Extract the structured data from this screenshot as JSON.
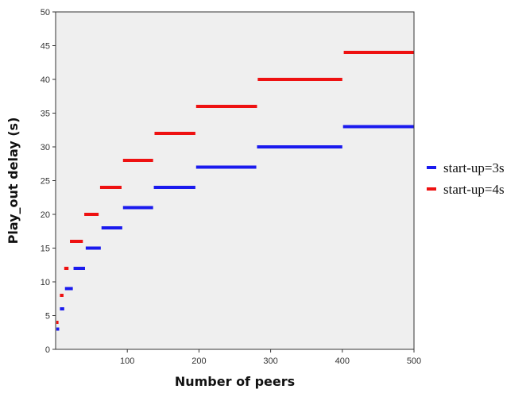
{
  "chart_data": {
    "type": "line",
    "title": "",
    "xlabel": "Number of peers",
    "ylabel": "Play_out delay (s)",
    "xlim": [
      0,
      500
    ],
    "ylim": [
      0,
      50
    ],
    "xticks": [
      100,
      200,
      300,
      400,
      500
    ],
    "yticks": [
      0,
      5,
      10,
      15,
      20,
      25,
      30,
      35,
      40,
      45,
      50
    ],
    "grid": false,
    "legend_position": "right",
    "background": "#efefef",
    "series": [
      {
        "name": "start-up=3s",
        "color": "#1a1aee",
        "style": "step-segments",
        "segments": [
          {
            "x": [
              1,
              5
            ],
            "y": 3
          },
          {
            "x": [
              6,
              12
            ],
            "y": 6
          },
          {
            "x": [
              13,
              24
            ],
            "y": 9
          },
          {
            "x": [
              25,
              41
            ],
            "y": 12
          },
          {
            "x": [
              42,
              63
            ],
            "y": 15
          },
          {
            "x": [
              64,
              93
            ],
            "y": 18
          },
          {
            "x": [
              94,
              136
            ],
            "y": 21
          },
          {
            "x": [
              137,
              195
            ],
            "y": 24
          },
          {
            "x": [
              196,
              280
            ],
            "y": 27
          },
          {
            "x": [
              281,
              400
            ],
            "y": 30
          },
          {
            "x": [
              401,
              500
            ],
            "y": 33
          }
        ]
      },
      {
        "name": "start-up=4s",
        "color": "#ee1111",
        "style": "step-segments",
        "segments": [
          {
            "x": [
              1,
              4
            ],
            "y": 4
          },
          {
            "x": [
              6,
              11
            ],
            "y": 8
          },
          {
            "x": [
              12,
              18
            ],
            "y": 12
          },
          {
            "x": [
              20,
              38
            ],
            "y": 16
          },
          {
            "x": [
              40,
              60
            ],
            "y": 20
          },
          {
            "x": [
              62,
              92
            ],
            "y": 24
          },
          {
            "x": [
              94,
              136
            ],
            "y": 28
          },
          {
            "x": [
              138,
              195
            ],
            "y": 32
          },
          {
            "x": [
              196,
              281
            ],
            "y": 36
          },
          {
            "x": [
              282,
              400
            ],
            "y": 40
          },
          {
            "x": [
              402,
              500
            ],
            "y": 44
          }
        ]
      }
    ]
  }
}
